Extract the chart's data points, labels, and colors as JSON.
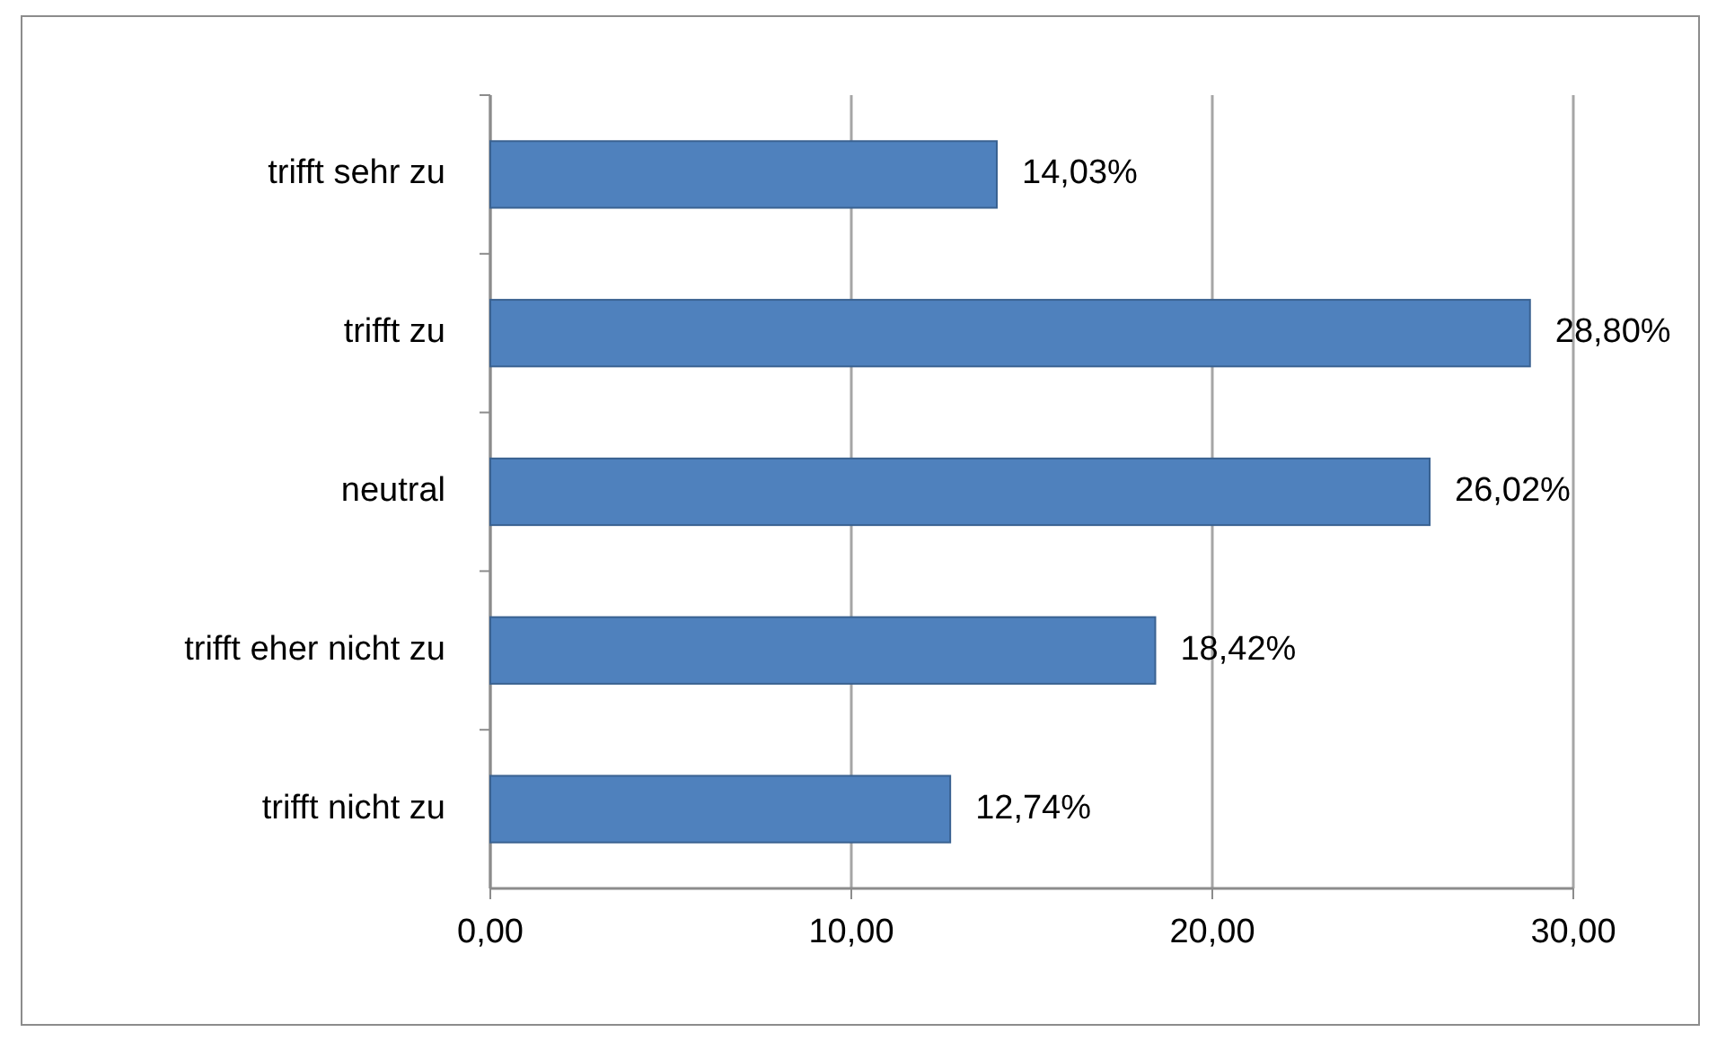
{
  "chart_data": {
    "type": "bar",
    "orientation": "horizontal",
    "categories": [
      "trifft sehr zu",
      "trifft zu",
      "neutral",
      "trifft eher nicht zu",
      "trifft nicht zu"
    ],
    "values": [
      14.03,
      28.8,
      26.02,
      18.42,
      12.74
    ],
    "value_labels": [
      "14,03%",
      "28,80%",
      "26,02%",
      "18,42%",
      "12,74%"
    ],
    "color": "#4f81bd",
    "xlim": [
      0,
      30
    ],
    "xticks": [
      {
        "value": 0,
        "label": "0,00"
      },
      {
        "value": 10,
        "label": "10,00"
      },
      {
        "value": 20,
        "label": "20,00"
      },
      {
        "value": 30,
        "label": "30,00"
      }
    ],
    "grid": "x"
  }
}
